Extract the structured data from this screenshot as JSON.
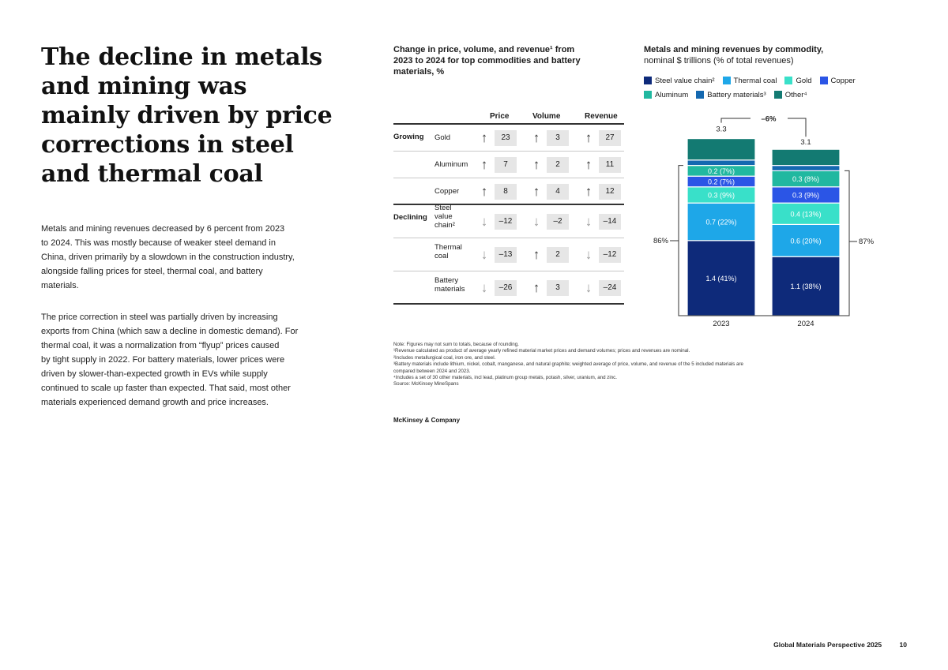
{
  "headline": {
    "lines": [
      "The decline in metals",
      "and mining was",
      "mainly driven by price",
      "corrections in steel",
      "and thermal coal"
    ]
  },
  "body": {
    "p1": [
      "Metals and mining revenues decreased by 6 percent from 2023",
      "to 2024. This was mostly because of weaker steel demand in",
      "China, driven primarily by a slowdown in the construction industry,",
      "alongside falling prices for steel, thermal coal, and battery",
      "materials."
    ],
    "p2": [
      "The price correction in steel was partially driven by increasing",
      "exports from China (which saw a decline in domestic demand). For",
      "thermal coal, it was a normalization from “flyup” prices caused",
      "by tight supply in 2022. For battery materials, lower prices were",
      "driven by slower-than-expected growth in EVs while supply",
      "continued to scale up faster than expected. That said, most other",
      "materials experienced demand growth and price increases."
    ]
  },
  "table": {
    "title_lines": [
      "Change in price, volume, and revenue¹ from",
      "2023 to 2024 for top commodities and battery",
      "materials, %"
    ],
    "headers": {
      "price": "Price",
      "volume": "Volume",
      "revenue": "Revenue"
    },
    "groups": {
      "growing": "Growing",
      "declining": "Declining"
    },
    "rows": [
      {
        "name": [
          "Gold"
        ],
        "price": "23",
        "volume": "3",
        "revenue": "27"
      },
      {
        "name": [
          "Aluminum"
        ],
        "price": "7",
        "volume": "2",
        "revenue": "11"
      },
      {
        "name": [
          "Copper"
        ],
        "price": "8",
        "volume": "4",
        "revenue": "12"
      },
      {
        "name": [
          "Steel",
          "value",
          "chain²"
        ],
        "price": "–12",
        "volume": "–2",
        "revenue": "–14"
      },
      {
        "name": [
          "Thermal",
          "coal"
        ],
        "price": "–13",
        "volume": "2",
        "revenue": "–12"
      },
      {
        "name": [
          "Battery",
          "materials"
        ],
        "price": "–26",
        "volume": "3",
        "revenue": "–24"
      }
    ]
  },
  "chart_data": {
    "type": "bar",
    "stacked": true,
    "title": "Metals and mining revenues by commodity,",
    "subtitle": "nominal $ trillions (% of total revenues)",
    "categories": [
      "2023",
      "2024"
    ],
    "totals": [
      "3.3",
      "3.1"
    ],
    "change_label": "–6%",
    "bracket_labels": [
      "86%",
      "87%"
    ],
    "series": [
      {
        "name": "Steel value chain²",
        "color": "#0e2a7a",
        "values": [
          1.4,
          1.1
        ],
        "labels": [
          "1.4 (41%)",
          "1.1 (38%)"
        ]
      },
      {
        "name": "Thermal coal",
        "color": "#1ea7e8",
        "values": [
          0.7,
          0.6
        ],
        "labels": [
          "0.7 (22%)",
          "0.6 (20%)"
        ]
      },
      {
        "name": "Gold",
        "color": "#39e0c9",
        "values": [
          0.3,
          0.4
        ],
        "labels": [
          "0.3 (9%)",
          "0.4 (13%)"
        ]
      },
      {
        "name": "Copper",
        "color": "#2b55e6",
        "values": [
          0.2,
          0.3
        ],
        "labels": [
          "0.2 (7%)",
          "0.3 (9%)"
        ]
      },
      {
        "name": "Aluminum",
        "color": "#21b8a0",
        "values": [
          0.2,
          0.3
        ],
        "labels": [
          "0.2 (7%)",
          "0.3 (8%)"
        ]
      },
      {
        "name": "Battery materials³",
        "color": "#1468b0",
        "values": [
          0.1,
          0.1
        ],
        "labels": [
          "",
          ""
        ]
      },
      {
        "name": "Other⁴",
        "color": "#137a72",
        "values": [
          0.4,
          0.3
        ],
        "labels": [
          "",
          ""
        ]
      }
    ],
    "legend_rows": [
      [
        "Steel value chain²",
        "Thermal coal",
        "Gold",
        "Copper"
      ],
      [
        "Aluminum",
        "Battery materials³",
        "Other⁴"
      ]
    ]
  },
  "notes": [
    "Note: Figures may not sum to totals, because of rounding.",
    "¹Revenue calculated as product of average yearly refined material market prices and demand volumes; prices and revenues are nominal.",
    "²Includes metallurgical coal, iron ore, and steel.",
    "³Battery materials include lithium, nickel, cobalt, manganese, and natural graphite; weighted average of price, volume, and revenue of the 5 included materials are",
    " compared between 2024 and 2023.",
    "⁴Includes a set of 30 other materials, incl lead, platinum group metals, potash, silver, uranium, and zinc.",
    " Source: McKinsey MineSpans"
  ],
  "brand": "McKinsey & Company",
  "footer": {
    "title": "Global Materials Perspective 2025",
    "page": "10"
  },
  "colors": {
    "up_arrow": "#333333",
    "down_arrow": "#9a9a9a"
  }
}
